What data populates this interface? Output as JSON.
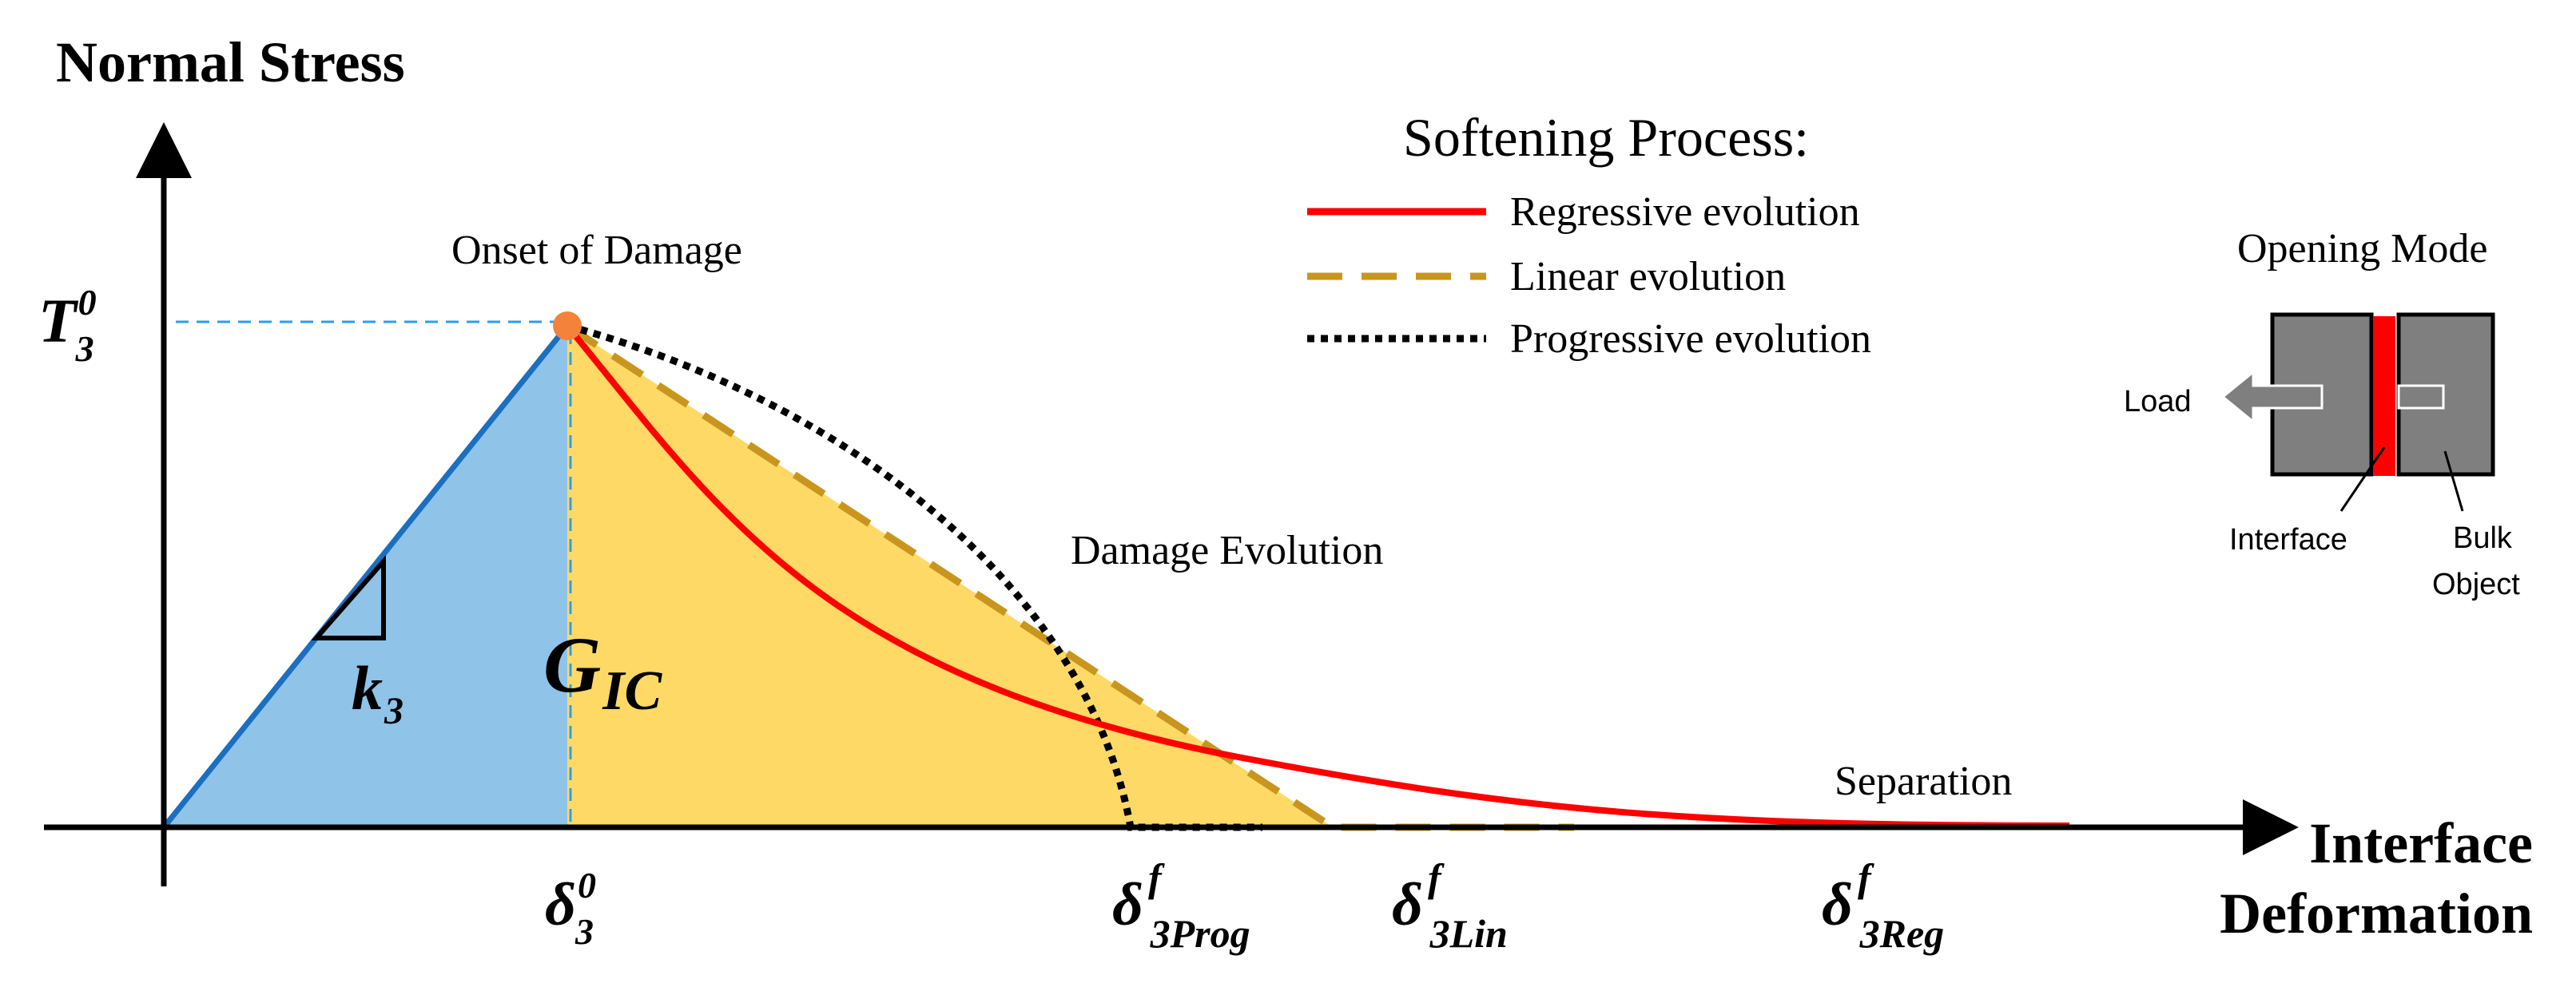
{
  "axes": {
    "y_label": "Normal Stress",
    "x_label_line1": "Interface",
    "x_label_line2": "Deformation"
  },
  "symbols": {
    "peak_stress": {
      "base": "T",
      "sup": "0",
      "sub": "3"
    },
    "onset_disp": {
      "base": "δ",
      "sup": "0",
      "sub": "3"
    },
    "prog_disp": {
      "base": "δ",
      "sup": "f",
      "sub": "3Prog"
    },
    "lin_disp": {
      "base": "δ",
      "sup": "f",
      "sub": "3Lin"
    },
    "reg_disp": {
      "base": "δ",
      "sup": "f",
      "sub": "3Reg"
    },
    "stiffness": {
      "base": "k",
      "sub": "3"
    },
    "fracture_energy": {
      "base": "G",
      "sub": "IC"
    }
  },
  "annotations": {
    "onset": "Onset of Damage",
    "evolution": "Damage Evolution",
    "separation": "Separation"
  },
  "legend": {
    "title": "Softening Process:",
    "items": [
      {
        "label": "Regressive evolution",
        "color": "#ff0000",
        "style": "solid"
      },
      {
        "label": "Linear evolution",
        "color": "#c8961e",
        "style": "dashed"
      },
      {
        "label": "Progressive evolution",
        "color": "#000000",
        "style": "dotted"
      }
    ]
  },
  "inset": {
    "title": "Opening Mode",
    "load": "Load",
    "interface": "Interface",
    "bulk_line1": "Bulk",
    "bulk_line2": "Object"
  },
  "colors": {
    "elastic_fill": "#8fc3e8",
    "elastic_line": "#1a6fc0",
    "damage_fill": "#ffd966",
    "regressive": "#ff0000",
    "linear": "#c8961e",
    "progressive": "#000000",
    "peak_marker": "#f4823a",
    "guide": "#2e9ee6",
    "block": "#7f7f7f",
    "interface": "#ff0000"
  }
}
